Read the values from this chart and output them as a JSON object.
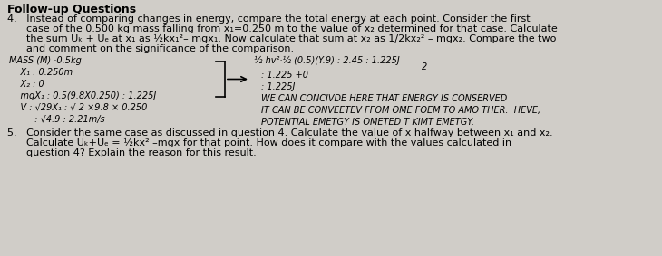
{
  "bg_color": "#d0cdc8",
  "title": "Follow-up Questions",
  "q4_lines": [
    "4.   Instead of comparing changes in energy, compare the total energy at each point. Consider the first",
    "      case of the 0.500 kg mass falling from x₁=0.250 m to the value of x₂ determined for that case. Calculate",
    "      the sum Uₖ + Uₑ at x₁ as ½kx₁²– mgx₁. Now calculate that sum at x₂ as 1/2kx₂² – mgx₂. Compare the two",
    "      and comment on the significance of the comparison."
  ],
  "hw_left": [
    "MASS (M) ·0.5kg",
    "    X₁ : 0.250m",
    "    X₂ : 0",
    "    mgX₁ : 0.5(9.8X0.250) : 1.225J",
    "    V : √29X₁ : √ 2 ×9.8 × 0.250",
    "         : √4.9 : 2.21m/s"
  ],
  "hw_right_line1": "½ hv²·½ (0.5)(Y.9) : 2.45 : 1.225J",
  "hw_right_line1b": "2",
  "hw_right_line2": ": 1.225 +0",
  "hw_right_line3": ": 1.225J",
  "hw_right_line4": "WE CAN CONCIVDE HERE THAT ENERGY IS CONSERVED",
  "hw_right_line5": "IT CAN BE CONVEETEV FFOM OME FOEM TO AMO THER.  HEVE,",
  "hw_right_line6": "POTENTIAL EMETGY IS OMETED T KIMT EMETGY.",
  "q5_lines": [
    "5.   Consider the same case as discussed in question 4. Calculate the value of x halfway between x₁ and x₂.",
    "      Calculate Uₖ+Uₑ = ½kx² –mgx for that point. How does it compare with the values calculated in",
    "      question 4? Explain the reason for this result."
  ],
  "font_title": 9,
  "font_body": 8,
  "font_hand": 7
}
